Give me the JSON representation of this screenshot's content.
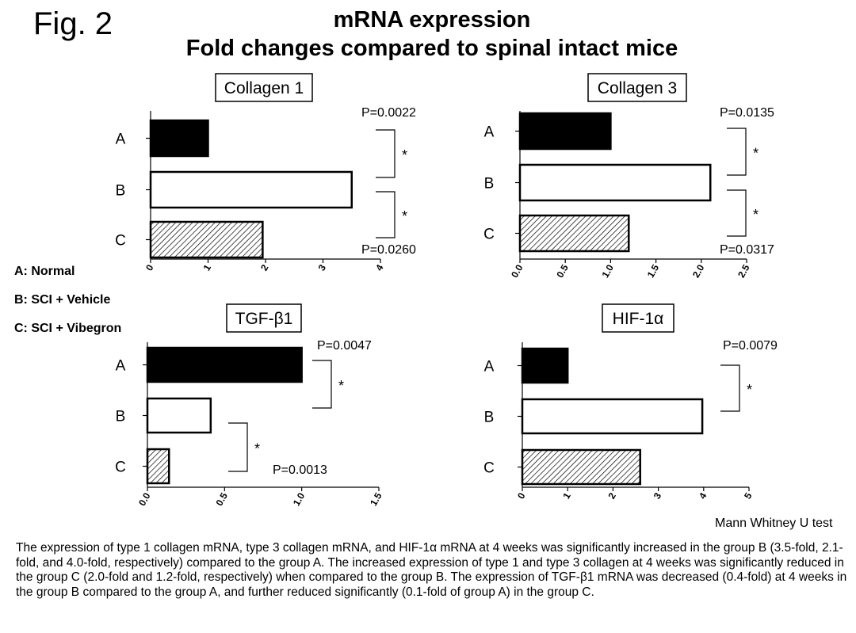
{
  "figure_label": "Fig. 2",
  "title_line1": "mRNA expression",
  "title_line2": "Fold changes compared to spinal intact mice",
  "legend": [
    "A: Normal",
    "B: SCI + Vehicle",
    "C: SCI + Vibegron"
  ],
  "test_note": "Mann Whitney U test",
  "caption": "The expression of type 1 collagen mRNA, type 3 collagen mRNA, and HIF-1α mRNA at 4 weeks was significantly increased in the group B (3.5-fold, 2.1-fold, and 4.0-fold, respectively) compared to the group A. The increased expression of type 1 and type 3 collagen at 4 weeks was significantly reduced in the group C (2.0-fold and 1.2-fold, respectively) when compared to the group B. The expression of TGF-β1 mRNA was decreased (0.4-fold) at 4 weeks in the group B compared to the group A, and further reduced significantly (0.1-fold of group A) in the group C.",
  "colors": {
    "bar_a": "#000000",
    "bar_b": "#ffffff",
    "bar_c_hatch": "#000000"
  },
  "chart_data": [
    {
      "type": "bar",
      "orientation": "horizontal",
      "title": "Collagen 1",
      "categories": [
        "A",
        "B",
        "C"
      ],
      "values": [
        1.0,
        3.5,
        1.95
      ],
      "xlim": [
        0,
        4
      ],
      "ticks": [
        "0",
        "1",
        "2",
        "3",
        "4"
      ],
      "fills": [
        "solid",
        "open",
        "hatched"
      ],
      "comparisons": [
        {
          "between": [
            "A",
            "B"
          ],
          "mark": "*",
          "p": "P=0.0022",
          "p_position": "top"
        },
        {
          "between": [
            "B",
            "C"
          ],
          "mark": "*",
          "p": "P=0.0260",
          "p_position": "bottom"
        }
      ]
    },
    {
      "type": "bar",
      "orientation": "horizontal",
      "title": "Collagen 3",
      "categories": [
        "A",
        "B",
        "C"
      ],
      "values": [
        1.0,
        2.1,
        1.2
      ],
      "xlim": [
        0,
        2.5
      ],
      "ticks": [
        "0.0",
        "0.5",
        "1.0",
        "1.5",
        "2.0",
        "2.5"
      ],
      "fills": [
        "solid",
        "open",
        "hatched"
      ],
      "comparisons": [
        {
          "between": [
            "A",
            "B"
          ],
          "mark": "*",
          "p": "P=0.0135",
          "p_position": "top"
        },
        {
          "between": [
            "B",
            "C"
          ],
          "mark": "*",
          "p": "P=0.0317",
          "p_position": "bottom"
        }
      ]
    },
    {
      "type": "bar",
      "orientation": "horizontal",
      "title": "TGF-β1",
      "categories": [
        "A",
        "B",
        "C"
      ],
      "values": [
        1.0,
        0.41,
        0.14
      ],
      "xlim": [
        0,
        1.5
      ],
      "ticks": [
        "0.0",
        "0.5",
        "1.0",
        "1.5"
      ],
      "fills": [
        "solid",
        "open",
        "hatched"
      ],
      "comparisons": [
        {
          "between": [
            "A",
            "B"
          ],
          "mark": "*",
          "p": "P=0.0047",
          "p_position": "top"
        },
        {
          "between": [
            "B",
            "C"
          ],
          "mark": "*",
          "p": "P=0.0013",
          "p_position": "bottom"
        }
      ]
    },
    {
      "type": "bar",
      "orientation": "horizontal",
      "title": "HIF-1α",
      "categories": [
        "A",
        "B",
        "C"
      ],
      "values": [
        1.0,
        3.97,
        2.6
      ],
      "xlim": [
        0,
        5
      ],
      "ticks": [
        "0",
        "1",
        "2",
        "3",
        "4",
        "5"
      ],
      "fills": [
        "solid",
        "open",
        "hatched"
      ],
      "comparisons": [
        {
          "between": [
            "A",
            "B"
          ],
          "mark": "*",
          "p": "P=0.0079",
          "p_position": "top"
        }
      ]
    }
  ]
}
